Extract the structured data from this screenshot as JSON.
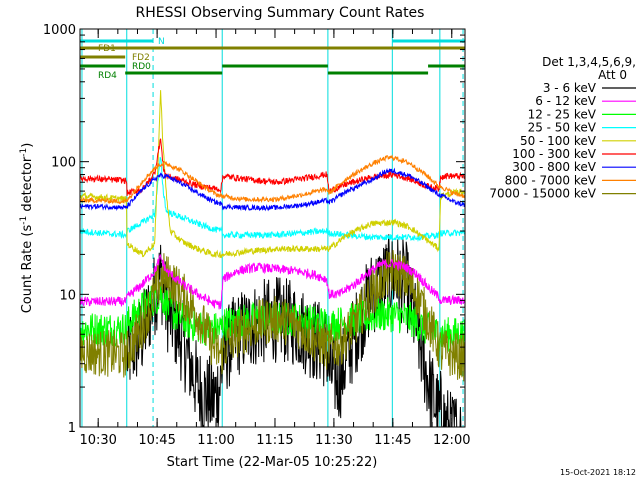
{
  "chart_data": {
    "type": "line",
    "title": "RHESSI Observing Summary Count Rates",
    "xlabel": "Start Time (22-Mar-05 10:25:22)",
    "ylabel": "Count Rate (s⁻¹ detector⁻¹)",
    "ylabel_parts": [
      "Count Rate (s",
      "-1",
      " detector",
      "-1",
      ")"
    ],
    "yscale": "log",
    "ylim": [
      1,
      1000
    ],
    "xlim_minutes": [
      0,
      98
    ],
    "x_ticks": [
      {
        "label": "10:30",
        "min": 4.63
      },
      {
        "label": "10:45",
        "min": 19.63
      },
      {
        "label": "11:00",
        "min": 34.63
      },
      {
        "label": "11:15",
        "min": 49.63
      },
      {
        "label": "11:30",
        "min": 64.63
      },
      {
        "label": "11:45",
        "min": 79.63
      },
      {
        "label": "12:00",
        "min": 94.63
      }
    ],
    "y_ticks": [
      "1",
      "10",
      "100",
      "1000"
    ],
    "legend_title": [
      "Det 1,3,4,5,6,9,",
      "Att 0"
    ],
    "legend_position": "right",
    "timestamp": "15-Oct-2021 18:12",
    "night_intervals_min": [
      [
        0,
        11.9
      ],
      [
        36.2,
        63.1
      ],
      [
        91.6,
        98
      ]
    ],
    "flare_peak_min": 20.5,
    "status_bars": [
      {
        "label": "N",
        "color": "#00dddd",
        "segments": [
          [
            0,
            18.6
          ],
          [
            79.5,
            98
          ]
        ]
      },
      {
        "label": "FD1",
        "color": "#808000",
        "segments": [
          [
            0,
            98
          ]
        ]
      },
      {
        "label": "FD2",
        "color": "#808000",
        "segments": [
          [
            0,
            11.5
          ]
        ]
      },
      {
        "label": "RD0",
        "color": "#008000",
        "segments": [
          [
            0,
            11.5
          ],
          [
            36.2,
            63.1
          ],
          [
            88.6,
            98
          ]
        ]
      },
      {
        "label": "RD4",
        "color": "#008000",
        "segments": [
          [
            11.5,
            36.2
          ],
          [
            63.1,
            88.6
          ]
        ]
      }
    ],
    "vertical_lines": [
      {
        "min": 0.5,
        "style": "solid",
        "color": "#00dddd"
      },
      {
        "min": 11.9,
        "style": "solid",
        "color": "#00dddd"
      },
      {
        "min": 18.6,
        "style": "dashed",
        "color": "#00dddd"
      },
      {
        "min": 36.2,
        "style": "solid",
        "color": "#00dddd"
      },
      {
        "min": 63.1,
        "style": "solid",
        "color": "#00dddd"
      },
      {
        "min": 79.5,
        "style": "solid",
        "color": "#00dddd"
      },
      {
        "min": 91.6,
        "style": "solid",
        "color": "#00dddd"
      },
      {
        "min": 97.5,
        "style": "dashed",
        "color": "#00dddd"
      }
    ],
    "series": [
      {
        "name": "3 - 6 keV",
        "color": "#000000",
        "noise": 0.55,
        "points": [
          [
            12.0,
            3.5
          ],
          [
            16,
            5
          ],
          [
            19,
            10
          ],
          [
            20.5,
            14
          ],
          [
            22,
            8
          ],
          [
            24,
            6
          ],
          [
            26,
            4.5
          ],
          [
            28,
            3
          ],
          [
            30,
            2
          ],
          [
            32,
            1.7
          ],
          [
            34,
            1.6
          ],
          [
            35.9,
            2.2
          ],
          [
            36.4,
            3.5
          ],
          [
            40,
            5
          ],
          [
            45,
            6
          ],
          [
            50,
            6.5
          ],
          [
            55,
            6
          ],
          [
            60,
            4.5
          ],
          [
            62.8,
            4
          ],
          [
            63.4,
            2.6
          ],
          [
            66,
            2.3
          ],
          [
            70,
            5
          ],
          [
            74,
            10
          ],
          [
            78,
            13
          ],
          [
            80,
            14
          ],
          [
            83,
            12
          ],
          [
            86,
            5
          ],
          [
            89,
            2
          ],
          [
            91.4,
            1.2
          ],
          [
            91.8,
            1.3
          ],
          [
            94,
            0.9
          ],
          [
            97,
            0.9
          ]
        ]
      },
      {
        "name": "6 - 12 keV",
        "color": "#ff00ff",
        "noise": 0.06,
        "points": [
          [
            0,
            8.8
          ],
          [
            5,
            8.8
          ],
          [
            11.8,
            8.8
          ],
          [
            12.0,
            9.5
          ],
          [
            16,
            12
          ],
          [
            19,
            15
          ],
          [
            20.5,
            19
          ],
          [
            22,
            15
          ],
          [
            26,
            12
          ],
          [
            30,
            10
          ],
          [
            34,
            8.5
          ],
          [
            35.9,
            8.3
          ],
          [
            36.4,
            13
          ],
          [
            40,
            15
          ],
          [
            45,
            16
          ],
          [
            50,
            15.5
          ],
          [
            55,
            15
          ],
          [
            60,
            14
          ],
          [
            62.8,
            13
          ],
          [
            63.4,
            10
          ],
          [
            66,
            10
          ],
          [
            70,
            12
          ],
          [
            74,
            15
          ],
          [
            77,
            17
          ],
          [
            80,
            17
          ],
          [
            83,
            16
          ],
          [
            86,
            14
          ],
          [
            89,
            11
          ],
          [
            91.4,
            9.5
          ],
          [
            91.8,
            9
          ],
          [
            95,
            9
          ],
          [
            98,
            9
          ]
        ]
      },
      {
        "name": "12 - 25 keV",
        "color": "#00ff00",
        "noise": 0.22,
        "points": [
          [
            0,
            5.5
          ],
          [
            11.8,
            5.5
          ],
          [
            12.0,
            6
          ],
          [
            16,
            8
          ],
          [
            20.5,
            10
          ],
          [
            24,
            7
          ],
          [
            28,
            6
          ],
          [
            32,
            5.5
          ],
          [
            35.9,
            5.5
          ],
          [
            36.4,
            6
          ],
          [
            45,
            6.5
          ],
          [
            55,
            6.5
          ],
          [
            62.8,
            6
          ],
          [
            63.4,
            5.8
          ],
          [
            70,
            6.5
          ],
          [
            76,
            7
          ],
          [
            80,
            7
          ],
          [
            84,
            6.5
          ],
          [
            88,
            5.5
          ],
          [
            91.4,
            5
          ],
          [
            91.8,
            5
          ],
          [
            98,
            5
          ]
        ]
      },
      {
        "name": "25 - 50 keV",
        "color": "#00ffff",
        "noise": 0.04,
        "points": [
          [
            0,
            30
          ],
          [
            5,
            29
          ],
          [
            11.8,
            28
          ],
          [
            12.0,
            30
          ],
          [
            16,
            35
          ],
          [
            19,
            40
          ],
          [
            20.5,
            110
          ],
          [
            21.2,
            60
          ],
          [
            22,
            42
          ],
          [
            26,
            38
          ],
          [
            30,
            34
          ],
          [
            34,
            31
          ],
          [
            35.9,
            30
          ],
          [
            36.4,
            28
          ],
          [
            42,
            28
          ],
          [
            50,
            28
          ],
          [
            56,
            29
          ],
          [
            62.8,
            30
          ],
          [
            63.4,
            29
          ],
          [
            68,
            28
          ],
          [
            74,
            27
          ],
          [
            80,
            27
          ],
          [
            86,
            27
          ],
          [
            91.4,
            28
          ],
          [
            91.8,
            29
          ],
          [
            98,
            29
          ]
        ]
      },
      {
        "name": "50 - 100 keV",
        "color": "#d0d000",
        "noise": 0.04,
        "points": [
          [
            0,
            55
          ],
          [
            5,
            54
          ],
          [
            11.8,
            52
          ],
          [
            12.0,
            24
          ],
          [
            16,
            20
          ],
          [
            19,
            24
          ],
          [
            20.1,
            150
          ],
          [
            20.5,
            350
          ],
          [
            21,
            160
          ],
          [
            22,
            55
          ],
          [
            23,
            30
          ],
          [
            26,
            25
          ],
          [
            30,
            22
          ],
          [
            34,
            20
          ],
          [
            35.9,
            20
          ],
          [
            36.4,
            20
          ],
          [
            42,
            21
          ],
          [
            50,
            22
          ],
          [
            56,
            22
          ],
          [
            62.8,
            22
          ],
          [
            63.4,
            22
          ],
          [
            68,
            28
          ],
          [
            74,
            34
          ],
          [
            80,
            35
          ],
          [
            84,
            32
          ],
          [
            88,
            26
          ],
          [
            91.4,
            22
          ],
          [
            91.8,
            55
          ],
          [
            95,
            58
          ],
          [
            98,
            60
          ]
        ]
      },
      {
        "name": "100 - 300 keV",
        "color": "#ff0000",
        "noise": 0.04,
        "points": [
          [
            0,
            75
          ],
          [
            5,
            74
          ],
          [
            11.8,
            72
          ],
          [
            12.0,
            58
          ],
          [
            16,
            62
          ],
          [
            19,
            82
          ],
          [
            20.5,
            150
          ],
          [
            21.2,
            90
          ],
          [
            22,
            78
          ],
          [
            26,
            72
          ],
          [
            30,
            66
          ],
          [
            34,
            63
          ],
          [
            35.9,
            62
          ],
          [
            36.4,
            78
          ],
          [
            42,
            74
          ],
          [
            50,
            70
          ],
          [
            56,
            74
          ],
          [
            62.5,
            80
          ],
          [
            62.8,
            80
          ],
          [
            63.4,
            60
          ],
          [
            68,
            68
          ],
          [
            74,
            76
          ],
          [
            80,
            80
          ],
          [
            84,
            74
          ],
          [
            88,
            66
          ],
          [
            91.4,
            62
          ],
          [
            91.8,
            78
          ],
          [
            95,
            78
          ],
          [
            98,
            77
          ]
        ]
      },
      {
        "name": "300 - 800 keV",
        "color": "#0000ff",
        "noise": 0.03,
        "points": [
          [
            0,
            46
          ],
          [
            5,
            46
          ],
          [
            11.8,
            45
          ],
          [
            12.0,
            46
          ],
          [
            16,
            62
          ],
          [
            20,
            78
          ],
          [
            22,
            78
          ],
          [
            26,
            68
          ],
          [
            30,
            58
          ],
          [
            34,
            50
          ],
          [
            35.9,
            48
          ],
          [
            36.4,
            46
          ],
          [
            42,
            45
          ],
          [
            50,
            45
          ],
          [
            56,
            47
          ],
          [
            62.8,
            51
          ],
          [
            63.4,
            49
          ],
          [
            68,
            60
          ],
          [
            74,
            72
          ],
          [
            78,
            85
          ],
          [
            80,
            85
          ],
          [
            84,
            78
          ],
          [
            88,
            66
          ],
          [
            91.4,
            56
          ],
          [
            91.8,
            56
          ],
          [
            95,
            50
          ],
          [
            98,
            47
          ]
        ]
      },
      {
        "name": "800 - 7000 keV",
        "color": "#ff8000",
        "noise": 0.03,
        "points": [
          [
            0,
            51
          ],
          [
            5,
            51
          ],
          [
            11.8,
            50
          ],
          [
            12.0,
            51
          ],
          [
            16,
            72
          ],
          [
            20,
            95
          ],
          [
            22,
            97
          ],
          [
            26,
            85
          ],
          [
            30,
            70
          ],
          [
            34,
            58
          ],
          [
            35.9,
            55
          ],
          [
            36.4,
            55
          ],
          [
            42,
            52
          ],
          [
            50,
            52
          ],
          [
            56,
            56
          ],
          [
            62.8,
            62
          ],
          [
            63.4,
            58
          ],
          [
            68,
            75
          ],
          [
            74,
            95
          ],
          [
            78,
            107
          ],
          [
            80,
            107
          ],
          [
            84,
            97
          ],
          [
            88,
            80
          ],
          [
            91.4,
            65
          ],
          [
            91.8,
            65
          ],
          [
            95,
            58
          ],
          [
            98,
            55
          ]
        ]
      },
      {
        "name": "7000 - 15000 keV",
        "color": "#808000",
        "noise": 0.3,
        "points": [
          [
            0,
            3.7
          ],
          [
            11.8,
            3.5
          ],
          [
            12.0,
            3.6
          ],
          [
            16,
            6
          ],
          [
            19,
            10
          ],
          [
            21,
            14
          ],
          [
            23,
            13
          ],
          [
            26,
            10
          ],
          [
            30,
            7
          ],
          [
            34,
            4
          ],
          [
            35.9,
            3.5
          ],
          [
            36.4,
            3.8
          ],
          [
            40,
            5
          ],
          [
            45,
            6
          ],
          [
            50,
            6.5
          ],
          [
            55,
            6
          ],
          [
            60,
            4.5
          ],
          [
            62.8,
            4
          ],
          [
            63.4,
            4
          ],
          [
            66,
            4.2
          ],
          [
            70,
            6
          ],
          [
            74,
            10
          ],
          [
            78,
            14
          ],
          [
            80,
            15
          ],
          [
            83,
            13
          ],
          [
            86,
            10
          ],
          [
            89,
            6
          ],
          [
            91.4,
            4
          ],
          [
            91.8,
            3.7
          ],
          [
            98,
            3.3
          ]
        ]
      }
    ]
  }
}
